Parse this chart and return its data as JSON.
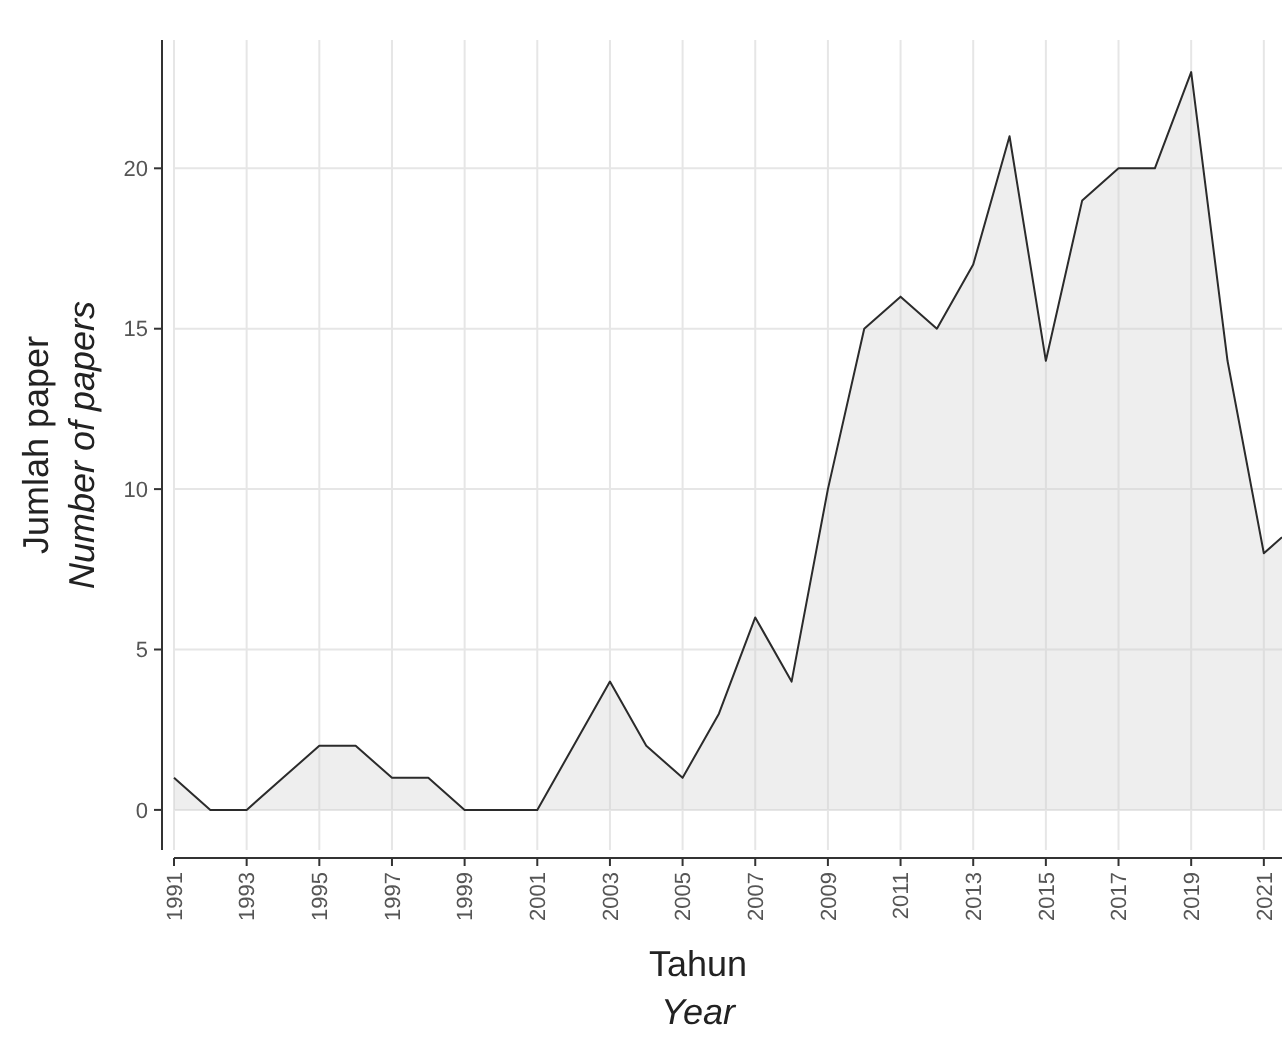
{
  "chart_data": {
    "type": "area",
    "xlabel": "Tahun\nYear",
    "ylabel": "Jumlah paper\nNumber of papers",
    "x": [
      1991,
      1992,
      1993,
      1994,
      1995,
      1996,
      1997,
      1998,
      1999,
      2000,
      2001,
      2002,
      2003,
      2004,
      2005,
      2006,
      2007,
      2008,
      2009,
      2010,
      2011,
      2012,
      2013,
      2014,
      2015,
      2016,
      2017,
      2018,
      2019,
      2020,
      2021,
      2021.5
    ],
    "series": [
      {
        "color": "#2b2b2b",
        "values": [
          1,
          0,
          0,
          1,
          2,
          2,
          1,
          1,
          0,
          0,
          0,
          2,
          4,
          2,
          1,
          3,
          6,
          4,
          10,
          15,
          16,
          15,
          17,
          21,
          14,
          19,
          20,
          20,
          23,
          14,
          8,
          8.5
        ]
      }
    ],
    "xlim": [
      1991,
      2021.5
    ],
    "xticks": [
      1991,
      1993,
      1995,
      1997,
      1999,
      2001,
      2003,
      2005,
      2007,
      2009,
      2011,
      2013,
      2015,
      2017,
      2019,
      2021
    ],
    "ylim": [
      -1.25,
      24
    ],
    "yticks": [
      0,
      5,
      10,
      15,
      20
    ],
    "grid": true
  }
}
